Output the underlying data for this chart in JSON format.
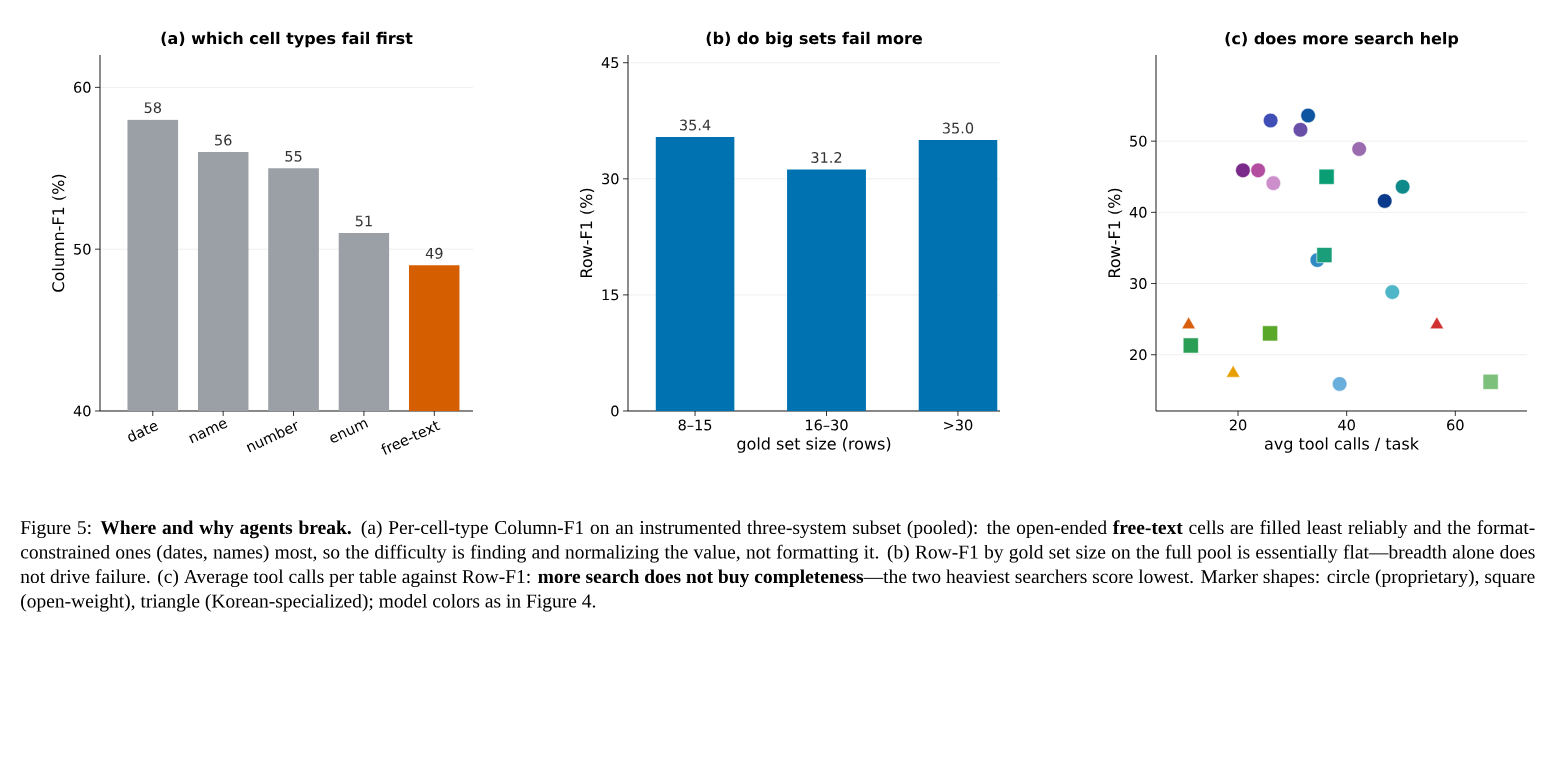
{
  "chart_data": [
    {
      "type": "bar",
      "title": "(a) which cell types fail first",
      "ylabel": "Column-F1 (%)",
      "categories": [
        "date",
        "name",
        "number",
        "enum",
        "free-text"
      ],
      "values": [
        58,
        56,
        55,
        51,
        49
      ],
      "colors": [
        "#9aa0a6",
        "#9aa0a6",
        "#9aa0a6",
        "#9aa0a6",
        "#d55e00"
      ],
      "ylim": [
        40,
        62
      ],
      "yticks": [
        40,
        50,
        60
      ],
      "grid": "y",
      "data_labels": true,
      "annotations": [
        "Figure 5: **Where and why agents break.** (a) Per-cell-type Column-F1 on an instrumented three-system subset (pooled): the open-ended **free-text** cells are filled least reliably and the format-constrained ones (dates, names) most, so the difficulty is finding and normalizing the value, not formatting it. (b) Row-F1 by gold set size on the full pool is essentially flat—breadth alone does not drive failure. (c) Average tool calls per table against Row-F1: **more search does not buy completeness**—the two heaviest searchers score lowest. Marker shapes: circle (proprietary), square (open-weight), triangle (Korean-specialized); model colors as in Figure 4."
      ]
    },
    {
      "type": "bar",
      "title": "(b) do big sets fail more",
      "xlabel": "gold set size (rows)",
      "ylabel": "Row-F1 (%)",
      "categories": [
        "8–15",
        "16–30",
        ">30"
      ],
      "values": [
        35.4,
        31.2,
        35.0
      ],
      "color": "#0072b2",
      "ylim": [
        0,
        46
      ],
      "yticks": [
        0,
        15,
        30,
        45
      ],
      "grid": "y",
      "value_labels": [
        "35.4",
        "31.2",
        "35.0"
      ]
    },
    {
      "type": "scatter",
      "title": "(c) does more search help",
      "xlabel": "avg tool calls / task",
      "ylabel": "Row-F1 (%)",
      "xlim": [
        4.9,
        73.2
      ],
      "xticks": [
        20,
        40,
        60
      ],
      "ylim": [
        12.1,
        62.1
      ],
      "yticks": [
        20,
        30,
        40,
        50
      ],
      "grid": "y",
      "series": [
        {
          "marker": "circle",
          "x": [
            26.0,
            32.9,
            31.5,
            42.3,
            20.9,
            23.7,
            26.5,
            50.3,
            47.0,
            34.6,
            48.4,
            38.7
          ],
          "values": [
            52.9,
            53.6,
            51.6,
            48.9,
            45.9,
            45.9,
            44.1,
            43.6,
            41.6,
            33.3,
            28.8,
            15.9
          ],
          "colors": [
            "#3f4fb5",
            "#0d55a0",
            "#6a4fa8",
            "#9b6bb0",
            "#7a2a8a",
            "#b24da0",
            "#cc8fcc",
            "#0e8a8a",
            "#0a3a8c",
            "#2f8ac4",
            "#4fb6c8",
            "#6aaedc"
          ]
        },
        {
          "marker": "square",
          "x": [
            36.3,
            35.9,
            11.3,
            25.9,
            66.5
          ],
          "values": [
            45.0,
            34.0,
            21.3,
            23.0,
            16.2
          ],
          "colors": [
            "#0a9e74",
            "#1a9e7a",
            "#2a9e55",
            "#5aa82a",
            "#7cc07c"
          ]
        },
        {
          "marker": "triangle",
          "x": [
            10.9,
            56.6,
            19.1
          ],
          "values": [
            24.2,
            24.2,
            17.4
          ],
          "colors": [
            "#d95f0e",
            "#d03030",
            "#e8a000"
          ]
        }
      ]
    }
  ]
}
